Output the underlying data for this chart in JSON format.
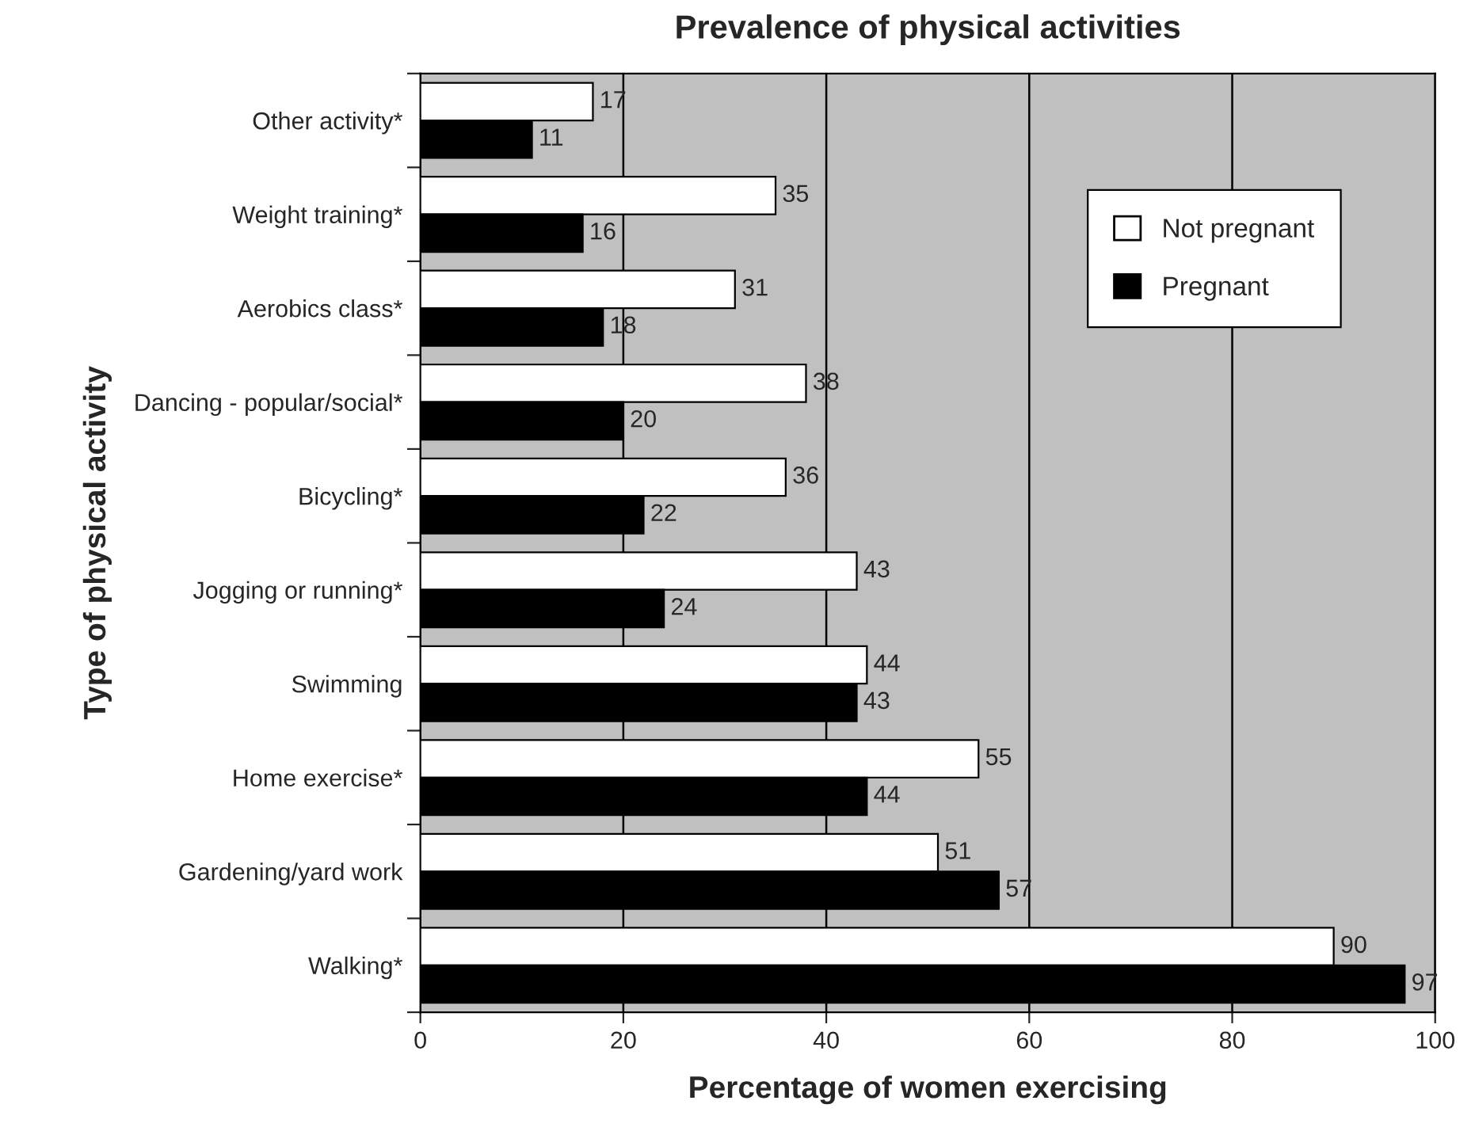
{
  "chart_data": {
    "type": "bar",
    "orientation": "horizontal",
    "title": "Prevalence of physical activities",
    "xlabel": "Percentage of women exercising",
    "ylabel": "Type of physical activity",
    "categories": [
      "Other activity*",
      "Weight training*",
      "Aerobics class*",
      "Dancing - popular/social*",
      "Bicycling*",
      "Jogging or running*",
      "Swimming",
      "Home exercise*",
      "Gardening/yard work",
      "Walking*"
    ],
    "series": [
      {
        "name": "Not pregnant",
        "color": "#ffffff",
        "values": [
          17,
          35,
          31,
          38,
          36,
          43,
          44,
          55,
          51,
          90
        ]
      },
      {
        "name": "Pregnant",
        "color": "#000000",
        "values": [
          11,
          16,
          18,
          20,
          22,
          24,
          43,
          44,
          57,
          97
        ]
      }
    ],
    "xlim": [
      0,
      100
    ],
    "xticks": [
      0,
      20,
      40,
      60,
      80,
      100
    ],
    "grid": "x",
    "legend": "top right",
    "data_labels": true
  }
}
